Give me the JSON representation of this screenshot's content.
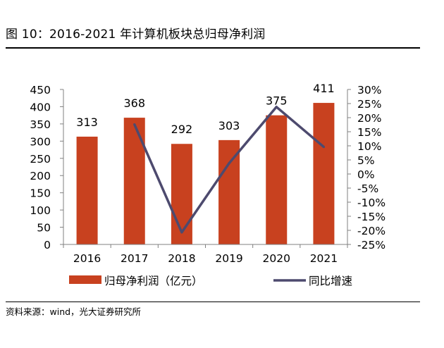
{
  "figure": {
    "title": "图 10：2016-2021 年计算机板块总归母净利润",
    "source": "资料来源：wind，光大证券研究所"
  },
  "colors": {
    "bar": "#c8411f",
    "line": "#4d4a6e",
    "axis": "#808080"
  },
  "chart_data": {
    "type": "bar",
    "categories": [
      "2016",
      "2017",
      "2018",
      "2019",
      "2020",
      "2021"
    ],
    "series": [
      {
        "name": "归母净利润（亿元）",
        "type": "bar",
        "axis": "left",
        "values": [
          313,
          368,
          292,
          303,
          375,
          411
        ],
        "labels": [
          "313",
          "368",
          "292",
          "303",
          "375",
          "411"
        ]
      },
      {
        "name": "同比增速",
        "type": "line",
        "axis": "right",
        "values": [
          null,
          17.6,
          -20.7,
          3.8,
          23.8,
          9.6
        ]
      }
    ],
    "left_axis": {
      "ylim": [
        0,
        450
      ],
      "ticks": [
        0,
        50,
        100,
        150,
        200,
        250,
        300,
        350,
        400,
        450
      ],
      "tick_labels": [
        "0",
        "50",
        "100",
        "150",
        "200",
        "250",
        "300",
        "350",
        "400",
        "450"
      ]
    },
    "right_axis": {
      "ylim": [
        -25,
        30
      ],
      "ticks": [
        -25,
        -20,
        -15,
        -10,
        -5,
        0,
        5,
        10,
        15,
        20,
        25,
        30
      ],
      "tick_labels": [
        "-25%",
        "-20%",
        "-15%",
        "-10%",
        "-5%",
        "0%",
        "5%",
        "10%",
        "15%",
        "20%",
        "25%",
        "30%"
      ]
    },
    "grid": false,
    "legend": {
      "placement": "bottom"
    }
  }
}
